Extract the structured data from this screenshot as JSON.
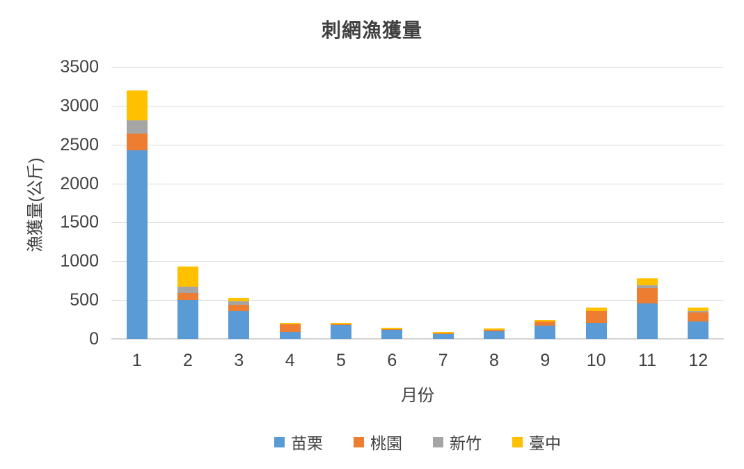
{
  "chart_data": {
    "type": "bar",
    "stacked": true,
    "title": "刺網漁獲量",
    "xlabel": "月份",
    "ylabel": "漁獲量(公斤)",
    "categories": [
      "1",
      "2",
      "3",
      "4",
      "5",
      "6",
      "7",
      "8",
      "9",
      "10",
      "11",
      "12"
    ],
    "series": [
      {
        "name": "苗栗",
        "color": "#5B9BD5",
        "values": [
          2430,
          500,
          355,
          90,
          175,
          120,
          70,
          100,
          170,
          210,
          455,
          220
        ]
      },
      {
        "name": "桃園",
        "color": "#ED7D31",
        "values": [
          215,
          90,
          80,
          95,
          10,
          5,
          5,
          20,
          50,
          150,
          200,
          120
        ]
      },
      {
        "name": "新竹",
        "color": "#A5A5A5",
        "values": [
          170,
          85,
          45,
          0,
          0,
          0,
          0,
          0,
          0,
          0,
          30,
          15
        ]
      },
      {
        "name": "臺中",
        "color": "#FFC000",
        "values": [
          385,
          260,
          45,
          25,
          25,
          15,
          15,
          15,
          25,
          45,
          95,
          50
        ]
      }
    ],
    "ylim": [
      0,
      3500
    ],
    "yticks": [
      0,
      500,
      1000,
      1500,
      2000,
      2500,
      3000,
      3500
    ],
    "grid": true,
    "legend_position": "bottom",
    "gridline_color": "#D9D9D9",
    "text_color": "#404040"
  }
}
